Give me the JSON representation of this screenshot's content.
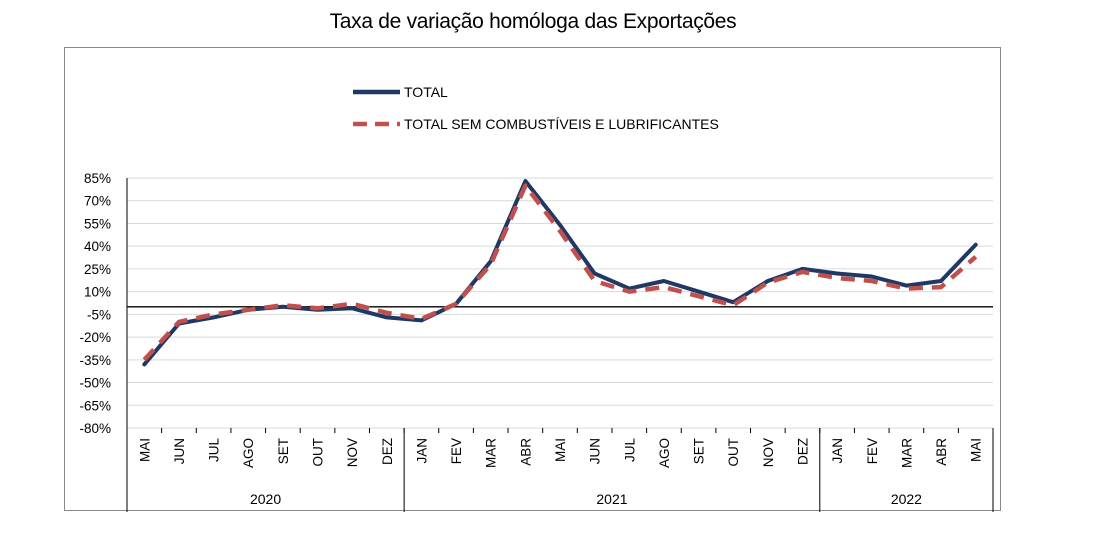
{
  "chart_data": {
    "type": "line",
    "title": "Taxa de variação homóloga das Exportações",
    "categories": [
      "MAI",
      "JUN",
      "JUL",
      "AGO",
      "SET",
      "OUT",
      "NOV",
      "DEZ",
      "JAN",
      "FEV",
      "MAR",
      "ABR",
      "MAI",
      "JUN",
      "JUL",
      "AGO",
      "SET",
      "OUT",
      "NOV",
      "DEZ",
      "JAN",
      "FEV",
      "MAR",
      "ABR",
      "MAI"
    ],
    "years": [
      {
        "label": "2020",
        "start": 0,
        "end": 8
      },
      {
        "label": "2021",
        "start": 8,
        "end": 20
      },
      {
        "label": "2022",
        "start": 20,
        "end": 25
      }
    ],
    "yticks": [
      85,
      70,
      55,
      40,
      25,
      10,
      -5,
      -20,
      -35,
      -50,
      -65,
      -80
    ],
    "ylim": [
      -80,
      85
    ],
    "ytick_suffix": "%",
    "series": [
      {
        "name": "TOTAL",
        "color": "#1f3864",
        "style": "solid",
        "values": [
          -38,
          -11,
          -7,
          -2,
          0,
          -2,
          -1,
          -7,
          -9,
          2,
          30,
          83,
          54,
          22,
          12,
          17,
          10,
          3,
          17,
          25,
          22,
          20,
          14,
          17,
          41
        ]
      },
      {
        "name": "TOTAL SEM COMBUSTÍVEIS E LUBRIFICANTES",
        "color": "#c0504d",
        "style": "dashed",
        "values": [
          -35,
          -10,
          -5,
          -2,
          1,
          -1,
          2,
          -4,
          -8,
          2,
          28,
          80,
          50,
          17,
          10,
          13,
          7,
          1,
          16,
          23,
          19,
          17,
          12,
          13,
          33
        ]
      }
    ],
    "legend_position": "top-center",
    "grid": true
  }
}
